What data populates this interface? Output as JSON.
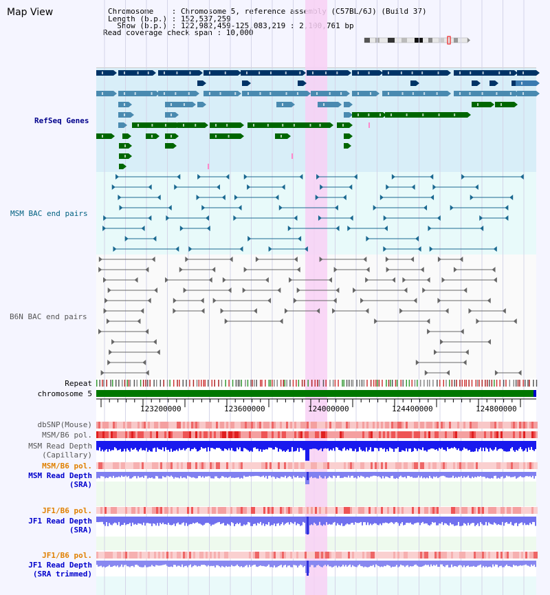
{
  "window": {
    "title": "Map View"
  },
  "header": {
    "chromosome_line": "Chromosome    : Chromosome 5, reference assembly (C57BL/6J) (Build 37)",
    "length_line": "Length (b.p.) : 152,537,259",
    "show_line": "  Show (b.p.) : 122,982,459-125,083,219 : 2,100,761 bp",
    "coverage_line": "Read coverage check span : 10,000"
  },
  "tracks": {
    "refseq": {
      "label": "RefSeq Genes",
      "color": "#00008b"
    },
    "msm_bac": {
      "label": "MSM BAC end pairs",
      "color": "#006080"
    },
    "b6n_bac": {
      "label": "B6N BAC end pairs",
      "color": "#555555"
    },
    "repeat": {
      "label": "Repeat"
    },
    "chromosome": {
      "label": "chromosome 5"
    },
    "dbsnp": {
      "label": "dbSNP(Mouse)"
    },
    "msm_b6_pol_1": {
      "label": "MSM/B6 pol."
    },
    "msm_depth_cap_1": {
      "label": "MSM Read Depth"
    },
    "msm_depth_cap_2": {
      "label": "(Capillary)"
    },
    "msm_b6_pol_2": {
      "label": "MSM/B6 pol.",
      "color": "#e08000"
    },
    "msm_depth_sra_1": {
      "label": "MSM Read Depth",
      "color": "#0000cc"
    },
    "msm_depth_sra_2": {
      "label": "(SRA)",
      "color": "#0000cc"
    },
    "jf1_b6_pol_1": {
      "label": "JF1/B6 pol.",
      "color": "#e08000"
    },
    "jf1_depth_1": {
      "label": "JF1 Read Depth",
      "color": "#0000cc"
    },
    "jf1_depth_2": {
      "label": "(SRA)",
      "color": "#0000cc"
    },
    "jf1_b6_pol_2": {
      "label": "JF1/B6 pol.",
      "color": "#e08000"
    },
    "jf1_trim_1": {
      "label": "JF1 Read Depth",
      "color": "#0000cc"
    },
    "jf1_trim_2": {
      "label": "(SRA trimmed)",
      "color": "#0000cc"
    }
  },
  "ruler": {
    "ticks": [
      "123200000",
      "123600000",
      "124000000",
      "124400000",
      "124800000"
    ]
  },
  "colors": {
    "highlight": "#f8d0f4",
    "chromosome_bar": "#007700",
    "gene_dark": "#003366",
    "gene_mid": "#4a8ab0",
    "gene_green": "#006600"
  }
}
